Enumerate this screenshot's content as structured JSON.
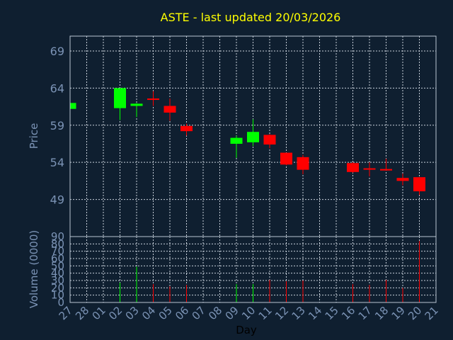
{
  "chart_data": [
    {
      "type": "candlestick",
      "title": "ASTE - last updated 20/03/2026",
      "ylabel": "Price",
      "ylim": [
        44,
        71
      ],
      "yticks": [
        49,
        54,
        59,
        64,
        69
      ],
      "grid": true,
      "colors": {
        "up": "#00ff00",
        "down": "#ff0000",
        "title": "#ffff00",
        "axis_text": "#7b93b5"
      },
      "categories": [
        "27",
        "28",
        "01",
        "02",
        "03",
        "04",
        "05",
        "06",
        "07",
        "08",
        "09",
        "10",
        "11",
        "12",
        "13",
        "14",
        "15",
        "16",
        "17",
        "18",
        "19",
        "20",
        "21"
      ],
      "candles": [
        {
          "day": "27",
          "open": 61.2,
          "high": 62.0,
          "low": 61.2,
          "close": 62.0
        },
        {
          "day": "02",
          "open": 61.3,
          "high": 64.0,
          "low": 59.7,
          "close": 64.0
        },
        {
          "day": "03",
          "open": 61.6,
          "high": 62.0,
          "low": 60.1,
          "close": 61.9
        },
        {
          "day": "04",
          "open": 62.6,
          "high": 63.6,
          "low": 61.6,
          "close": 62.5
        },
        {
          "day": "05",
          "open": 61.6,
          "high": 62.6,
          "low": 59.6,
          "close": 60.7
        },
        {
          "day": "06",
          "open": 58.9,
          "high": 59.2,
          "low": 57.6,
          "close": 58.2
        },
        {
          "day": "09",
          "open": 56.5,
          "high": 57.6,
          "low": 54.6,
          "close": 57.3
        },
        {
          "day": "10",
          "open": 56.7,
          "high": 59.8,
          "low": 56.2,
          "close": 58.1
        },
        {
          "day": "11",
          "open": 57.7,
          "high": 57.8,
          "low": 55.9,
          "close": 56.4
        },
        {
          "day": "12",
          "open": 55.3,
          "high": 55.3,
          "low": 53.6,
          "close": 53.7
        },
        {
          "day": "13",
          "open": 54.7,
          "high": 55.0,
          "low": 52.4,
          "close": 53.0
        },
        {
          "day": "16",
          "open": 53.9,
          "high": 54.0,
          "low": 52.6,
          "close": 52.7
        },
        {
          "day": "17",
          "open": 53.2,
          "high": 54.0,
          "low": 52.1,
          "close": 53.1
        },
        {
          "day": "18",
          "open": 53.1,
          "high": 54.5,
          "low": 52.9,
          "close": 52.9
        },
        {
          "day": "19",
          "open": 51.9,
          "high": 52.5,
          "low": 50.9,
          "close": 51.5
        },
        {
          "day": "20",
          "open": 52.0,
          "high": 52.0,
          "low": 49.6,
          "close": 50.1
        }
      ]
    },
    {
      "type": "bar",
      "ylabel": "Volume (0000)",
      "xlabel": "Day",
      "ylim": [
        0,
        90
      ],
      "yticks": [
        0,
        10,
        20,
        30,
        40,
        50,
        60,
        70,
        80,
        90
      ],
      "grid": true,
      "categories": [
        "27",
        "28",
        "01",
        "02",
        "03",
        "04",
        "05",
        "06",
        "07",
        "08",
        "09",
        "10",
        "11",
        "12",
        "13",
        "14",
        "15",
        "16",
        "17",
        "18",
        "19",
        "20",
        "21"
      ],
      "bars": [
        {
          "day": "02",
          "value": 27,
          "color": "#00ff00"
        },
        {
          "day": "03",
          "value": 49,
          "color": "#00ff00"
        },
        {
          "day": "04",
          "value": 25,
          "color": "#ff0000"
        },
        {
          "day": "05",
          "value": 22,
          "color": "#ff0000"
        },
        {
          "day": "06",
          "value": 24,
          "color": "#ff0000"
        },
        {
          "day": "09",
          "value": 25,
          "color": "#00ff00"
        },
        {
          "day": "10",
          "value": 25,
          "color": "#00ff00"
        },
        {
          "day": "11",
          "value": 31,
          "color": "#ff0000"
        },
        {
          "day": "12",
          "value": 29,
          "color": "#ff0000"
        },
        {
          "day": "13",
          "value": 30,
          "color": "#ff0000"
        },
        {
          "day": "16",
          "value": 25,
          "color": "#ff0000"
        },
        {
          "day": "17",
          "value": 24,
          "color": "#ff0000"
        },
        {
          "day": "18",
          "value": 31,
          "color": "#ff0000"
        },
        {
          "day": "19",
          "value": 20,
          "color": "#ff0000"
        },
        {
          "day": "20",
          "value": 84,
          "color": "#ff0000"
        }
      ]
    }
  ]
}
